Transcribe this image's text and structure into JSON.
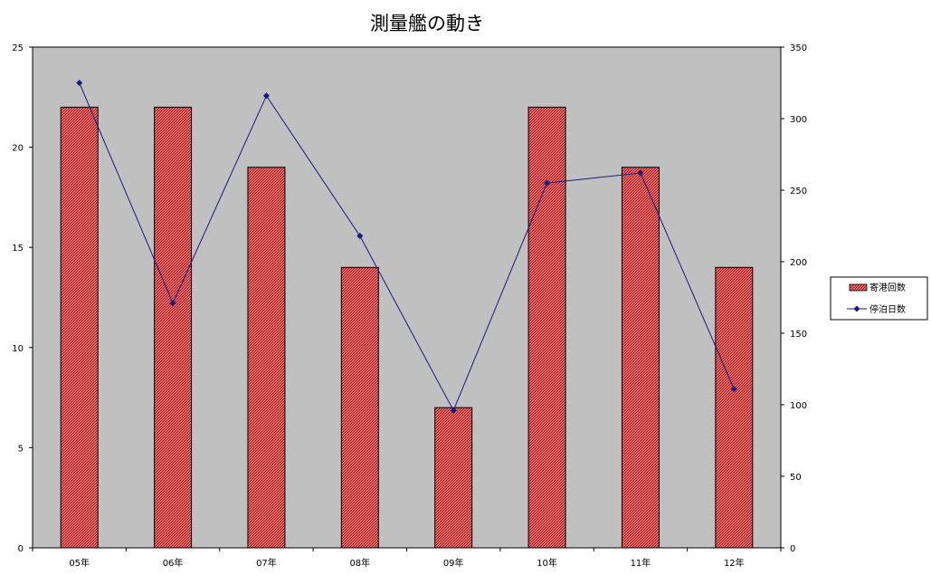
{
  "chart_data": {
    "type": "bar",
    "title": "測量艦の動き",
    "categories": [
      "05年",
      "06年",
      "07年",
      "08年",
      "09年",
      "10年",
      "11年",
      "12年"
    ],
    "series": [
      {
        "name": "寄港回数",
        "type": "bar",
        "axis": "left",
        "values": [
          22,
          22,
          19,
          14,
          7,
          22,
          19,
          14
        ]
      },
      {
        "name": "停泊日数",
        "type": "line",
        "axis": "right",
        "values": [
          325,
          171,
          316,
          218,
          96,
          255,
          262,
          111
        ]
      }
    ],
    "y_left": {
      "ylim": [
        0,
        25
      ],
      "ticks": [
        "0",
        "5",
        "10",
        "15",
        "20",
        "25"
      ]
    },
    "y_right": {
      "ylim": [
        0,
        350
      ],
      "ticks": [
        "0",
        "50",
        "100",
        "150",
        "200",
        "250",
        "300",
        "350"
      ]
    },
    "xlabel": "",
    "ylabel": "",
    "grid": false,
    "legend_position": "right",
    "colors": {
      "plot_background": "#c0c0c0",
      "bar_fill": "#e06060",
      "bar_pattern": "#a01010",
      "bar_border": "#000000",
      "line": "#1a1a80",
      "marker": "#1a1a80"
    }
  }
}
